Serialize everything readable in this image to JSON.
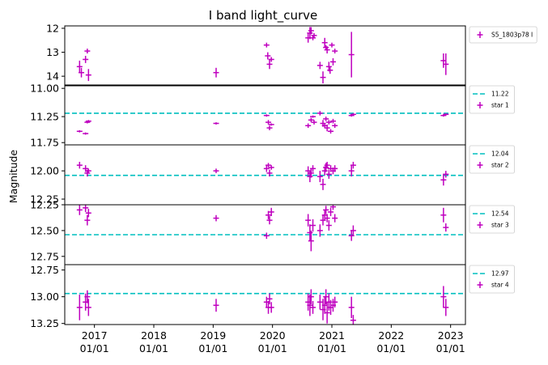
{
  "title": "I band light_curve",
  "ylabel": "Magnitude",
  "colors": {
    "data": "#bf00bf",
    "reference": "#00bfbf",
    "axis": "#000000"
  },
  "x_ticks": [
    {
      "year": 2017,
      "label1": "2017",
      "label2": "01/01"
    },
    {
      "year": 2018,
      "label1": "2018",
      "label2": "01/01"
    },
    {
      "year": 2019,
      "label1": "2019",
      "label2": "01/01"
    },
    {
      "year": 2020,
      "label1": "2020",
      "label2": "01/01"
    },
    {
      "year": 2021,
      "label1": "2021",
      "label2": "01/01"
    },
    {
      "year": 2022,
      "label1": "2022",
      "label2": "01/01"
    },
    {
      "year": 2023,
      "label1": "2023",
      "label2": "01/01"
    }
  ],
  "chart_data": [
    {
      "type": "scatter",
      "series_name": "S5_1803p78 I",
      "ylim": [
        14.4,
        11.9
      ],
      "yticks": [
        {
          "v": 12,
          "label": "12"
        },
        {
          "v": 13,
          "label": "13"
        },
        {
          "v": 14,
          "label": "14"
        }
      ],
      "points": [
        {
          "x": 2016.75,
          "y": 13.6,
          "e": 0.25
        },
        {
          "x": 2016.78,
          "y": 13.85,
          "e": 0.2
        },
        {
          "x": 2016.85,
          "y": 13.3,
          "e": 0.15
        },
        {
          "x": 2016.88,
          "y": 12.95,
          "e": 0.1
        },
        {
          "x": 2016.9,
          "y": 13.95,
          "e": 0.25
        },
        {
          "x": 2019.05,
          "y": 13.85,
          "e": 0.2
        },
        {
          "x": 2019.9,
          "y": 12.7,
          "e": 0.1
        },
        {
          "x": 2019.92,
          "y": 13.15,
          "e": 0.15
        },
        {
          "x": 2019.95,
          "y": 13.5,
          "e": 0.2
        },
        {
          "x": 2019.98,
          "y": 13.3,
          "e": 0.1
        },
        {
          "x": 2020.6,
          "y": 12.4,
          "e": 0.2
        },
        {
          "x": 2020.63,
          "y": 12.2,
          "e": 0.25
        },
        {
          "x": 2020.65,
          "y": 12.1,
          "e": 0.15
        },
        {
          "x": 2020.68,
          "y": 12.4,
          "e": 0.1
        },
        {
          "x": 2020.7,
          "y": 12.3,
          "e": 0.1
        },
        {
          "x": 2020.8,
          "y": 13.55,
          "e": 0.15
        },
        {
          "x": 2020.85,
          "y": 14.05,
          "e": 0.25
        },
        {
          "x": 2020.88,
          "y": 12.6,
          "e": 0.2
        },
        {
          "x": 2020.9,
          "y": 12.8,
          "e": 0.1
        },
        {
          "x": 2020.92,
          "y": 12.9,
          "e": 0.15
        },
        {
          "x": 2020.95,
          "y": 13.6,
          "e": 0.2
        },
        {
          "x": 2020.97,
          "y": 13.75,
          "e": 0.15
        },
        {
          "x": 2021.0,
          "y": 12.7,
          "e": 0.1
        },
        {
          "x": 2021.02,
          "y": 13.4,
          "e": 0.15
        },
        {
          "x": 2021.05,
          "y": 12.95,
          "e": 0.1
        },
        {
          "x": 2021.33,
          "y": 13.1,
          "e": 0.95
        },
        {
          "x": 2022.88,
          "y": 13.35,
          "e": 0.3
        },
        {
          "x": 2022.92,
          "y": 13.5,
          "e": 0.45
        }
      ]
    },
    {
      "type": "scatter",
      "series_name": "star 1",
      "reference_label": "11.22",
      "reference_value": 11.22,
      "ylim": [
        11.5,
        10.97
      ],
      "yticks": [
        {
          "v": 11.0,
          "label": "11.00"
        },
        {
          "v": 11.25,
          "label": "11.25"
        }
      ],
      "points": [
        {
          "x": 2016.75,
          "y": 11.38,
          "e": 0.01
        },
        {
          "x": 2016.85,
          "y": 11.4,
          "e": 0.01
        },
        {
          "x": 2016.88,
          "y": 11.3,
          "e": 0.01
        },
        {
          "x": 2016.9,
          "y": 11.29,
          "e": 0.01
        },
        {
          "x": 2019.05,
          "y": 11.31,
          "e": 0.01
        },
        {
          "x": 2019.9,
          "y": 11.24,
          "e": 0.01
        },
        {
          "x": 2019.93,
          "y": 11.3,
          "e": 0.02
        },
        {
          "x": 2019.95,
          "y": 11.35,
          "e": 0.02
        },
        {
          "x": 2019.98,
          "y": 11.32,
          "e": 0.01
        },
        {
          "x": 2020.6,
          "y": 11.33,
          "e": 0.02
        },
        {
          "x": 2020.65,
          "y": 11.28,
          "e": 0.02
        },
        {
          "x": 2020.68,
          "y": 11.25,
          "e": 0.01
        },
        {
          "x": 2020.7,
          "y": 11.3,
          "e": 0.02
        },
        {
          "x": 2020.8,
          "y": 11.22,
          "e": 0.02
        },
        {
          "x": 2020.85,
          "y": 11.31,
          "e": 0.03
        },
        {
          "x": 2020.88,
          "y": 11.33,
          "e": 0.02
        },
        {
          "x": 2020.9,
          "y": 11.27,
          "e": 0.02
        },
        {
          "x": 2020.92,
          "y": 11.35,
          "e": 0.03
        },
        {
          "x": 2020.95,
          "y": 11.3,
          "e": 0.02
        },
        {
          "x": 2020.98,
          "y": 11.38,
          "e": 0.02
        },
        {
          "x": 2021.02,
          "y": 11.29,
          "e": 0.02
        },
        {
          "x": 2021.05,
          "y": 11.33,
          "e": 0.02
        },
        {
          "x": 2021.33,
          "y": 11.24,
          "e": 0.01
        },
        {
          "x": 2021.36,
          "y": 11.23,
          "e": 0.01
        },
        {
          "x": 2022.88,
          "y": 11.24,
          "e": 0.01
        },
        {
          "x": 2022.92,
          "y": 11.23,
          "e": 0.01
        }
      ]
    },
    {
      "type": "scatter",
      "series_name": "star 2",
      "reference_label": "12.04",
      "reference_value": 12.04,
      "ylim": [
        12.3,
        11.77
      ],
      "yticks": [
        {
          "v": 11.75,
          "label": "11.75"
        },
        {
          "v": 12.0,
          "label": "12.00"
        },
        {
          "v": 12.25,
          "label": "12.25"
        }
      ],
      "points": [
        {
          "x": 2016.75,
          "y": 11.95,
          "e": 0.03
        },
        {
          "x": 2016.85,
          "y": 11.98,
          "e": 0.03
        },
        {
          "x": 2016.88,
          "y": 12.02,
          "e": 0.03
        },
        {
          "x": 2016.9,
          "y": 12.0,
          "e": 0.02
        },
        {
          "x": 2019.05,
          "y": 12.0,
          "e": 0.02
        },
        {
          "x": 2019.9,
          "y": 11.98,
          "e": 0.03
        },
        {
          "x": 2019.93,
          "y": 11.95,
          "e": 0.02
        },
        {
          "x": 2019.95,
          "y": 12.02,
          "e": 0.03
        },
        {
          "x": 2019.98,
          "y": 11.97,
          "e": 0.02
        },
        {
          "x": 2020.6,
          "y": 12.0,
          "e": 0.04
        },
        {
          "x": 2020.63,
          "y": 12.05,
          "e": 0.05
        },
        {
          "x": 2020.65,
          "y": 12.02,
          "e": 0.04
        },
        {
          "x": 2020.68,
          "y": 11.98,
          "e": 0.03
        },
        {
          "x": 2020.8,
          "y": 12.05,
          "e": 0.05
        },
        {
          "x": 2020.85,
          "y": 12.12,
          "e": 0.05
        },
        {
          "x": 2020.88,
          "y": 12.0,
          "e": 0.04
        },
        {
          "x": 2020.9,
          "y": 11.97,
          "e": 0.04
        },
        {
          "x": 2020.92,
          "y": 11.95,
          "e": 0.03
        },
        {
          "x": 2020.95,
          "y": 12.03,
          "e": 0.04
        },
        {
          "x": 2020.98,
          "y": 11.98,
          "e": 0.03
        },
        {
          "x": 2021.02,
          "y": 12.0,
          "e": 0.03
        },
        {
          "x": 2021.05,
          "y": 11.98,
          "e": 0.03
        },
        {
          "x": 2021.33,
          "y": 12.0,
          "e": 0.05
        },
        {
          "x": 2021.36,
          "y": 11.95,
          "e": 0.03
        },
        {
          "x": 2022.88,
          "y": 12.08,
          "e": 0.05
        },
        {
          "x": 2022.92,
          "y": 12.03,
          "e": 0.03
        }
      ]
    },
    {
      "type": "scatter",
      "series_name": "star 3",
      "reference_label": "12.54",
      "reference_value": 12.54,
      "ylim": [
        12.83,
        12.25
      ],
      "yticks": [
        {
          "v": 12.25,
          "label": "12.25"
        },
        {
          "v": 12.5,
          "label": "12.50"
        },
        {
          "v": 12.75,
          "label": "12.75"
        }
      ],
      "points": [
        {
          "x": 2016.75,
          "y": 12.3,
          "e": 0.05
        },
        {
          "x": 2016.85,
          "y": 12.28,
          "e": 0.04
        },
        {
          "x": 2016.88,
          "y": 12.4,
          "e": 0.05
        },
        {
          "x": 2016.9,
          "y": 12.33,
          "e": 0.04
        },
        {
          "x": 2019.05,
          "y": 12.38,
          "e": 0.03
        },
        {
          "x": 2019.9,
          "y": 12.55,
          "e": 0.03
        },
        {
          "x": 2019.93,
          "y": 12.35,
          "e": 0.04
        },
        {
          "x": 2019.95,
          "y": 12.4,
          "e": 0.04
        },
        {
          "x": 2019.98,
          "y": 12.32,
          "e": 0.04
        },
        {
          "x": 2020.6,
          "y": 12.4,
          "e": 0.06
        },
        {
          "x": 2020.63,
          "y": 12.52,
          "e": 0.08
        },
        {
          "x": 2020.65,
          "y": 12.6,
          "e": 0.1
        },
        {
          "x": 2020.68,
          "y": 12.45,
          "e": 0.06
        },
        {
          "x": 2020.8,
          "y": 12.5,
          "e": 0.06
        },
        {
          "x": 2020.85,
          "y": 12.4,
          "e": 0.05
        },
        {
          "x": 2020.88,
          "y": 12.35,
          "e": 0.05
        },
        {
          "x": 2020.9,
          "y": 12.3,
          "e": 0.04
        },
        {
          "x": 2020.92,
          "y": 12.38,
          "e": 0.04
        },
        {
          "x": 2020.95,
          "y": 12.45,
          "e": 0.05
        },
        {
          "x": 2020.98,
          "y": 12.32,
          "e": 0.04
        },
        {
          "x": 2021.02,
          "y": 12.27,
          "e": 0.03
        },
        {
          "x": 2021.05,
          "y": 12.38,
          "e": 0.04
        },
        {
          "x": 2021.33,
          "y": 12.55,
          "e": 0.05
        },
        {
          "x": 2021.36,
          "y": 12.5,
          "e": 0.05
        },
        {
          "x": 2022.88,
          "y": 12.35,
          "e": 0.07
        },
        {
          "x": 2022.92,
          "y": 12.47,
          "e": 0.04
        }
      ]
    },
    {
      "type": "scatter",
      "series_name": "star 4",
      "reference_label": "12.97",
      "reference_value": 12.97,
      "ylim": [
        13.26,
        12.7
      ],
      "yticks": [
        {
          "v": 12.75,
          "label": "12.75"
        },
        {
          "v": 13.0,
          "label": "13.00"
        },
        {
          "v": 13.25,
          "label": "13.25"
        }
      ],
      "points": [
        {
          "x": 2016.75,
          "y": 13.1,
          "e": 0.12
        },
        {
          "x": 2016.85,
          "y": 13.05,
          "e": 0.08
        },
        {
          "x": 2016.88,
          "y": 13.0,
          "e": 0.06
        },
        {
          "x": 2016.9,
          "y": 13.1,
          "e": 0.08
        },
        {
          "x": 2019.05,
          "y": 13.08,
          "e": 0.06
        },
        {
          "x": 2019.9,
          "y": 13.05,
          "e": 0.05
        },
        {
          "x": 2019.93,
          "y": 13.1,
          "e": 0.06
        },
        {
          "x": 2019.95,
          "y": 13.02,
          "e": 0.05
        },
        {
          "x": 2019.98,
          "y": 13.1,
          "e": 0.05
        },
        {
          "x": 2020.6,
          "y": 13.05,
          "e": 0.08
        },
        {
          "x": 2020.63,
          "y": 13.08,
          "e": 0.1
        },
        {
          "x": 2020.65,
          "y": 13.0,
          "e": 0.07
        },
        {
          "x": 2020.68,
          "y": 13.1,
          "e": 0.06
        },
        {
          "x": 2020.8,
          "y": 13.05,
          "e": 0.07
        },
        {
          "x": 2020.85,
          "y": 13.12,
          "e": 0.1
        },
        {
          "x": 2020.88,
          "y": 13.08,
          "e": 0.08
        },
        {
          "x": 2020.9,
          "y": 13.0,
          "e": 0.07
        },
        {
          "x": 2020.92,
          "y": 13.15,
          "e": 0.1
        },
        {
          "x": 2020.95,
          "y": 13.05,
          "e": 0.08
        },
        {
          "x": 2020.98,
          "y": 13.1,
          "e": 0.07
        },
        {
          "x": 2021.02,
          "y": 13.08,
          "e": 0.06
        },
        {
          "x": 2021.05,
          "y": 13.05,
          "e": 0.05
        },
        {
          "x": 2021.33,
          "y": 13.1,
          "e": 0.1
        },
        {
          "x": 2021.36,
          "y": 13.22,
          "e": 0.05
        },
        {
          "x": 2022.88,
          "y": 13.0,
          "e": 0.1
        },
        {
          "x": 2022.92,
          "y": 13.1,
          "e": 0.08
        }
      ]
    }
  ]
}
